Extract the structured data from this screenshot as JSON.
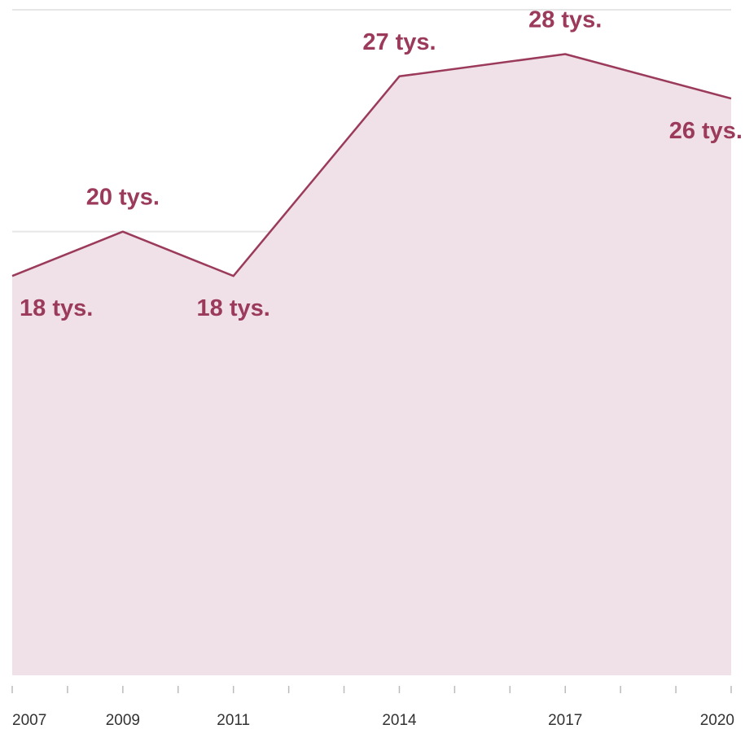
{
  "chart_data": {
    "type": "area",
    "x": [
      "2007",
      "2009",
      "2011",
      "2014",
      "2017",
      "2020"
    ],
    "values": [
      18,
      20,
      18,
      27,
      28,
      26
    ],
    "data_labels": [
      "18 tys.",
      "20 tys.",
      "18 tys.",
      "27 tys.",
      "28 tys.",
      "26 tys."
    ],
    "ylim": [
      0,
      30
    ],
    "y_gridlines": [
      10,
      20,
      30
    ],
    "grid": true,
    "title": "",
    "xlabel": "",
    "ylabel": "",
    "colors": {
      "line": "#9b3a5a",
      "fill": "#efe1e7",
      "label": "#9b3a5a",
      "grid": "#e6e6e6",
      "tick": "#bbbbbb"
    }
  }
}
